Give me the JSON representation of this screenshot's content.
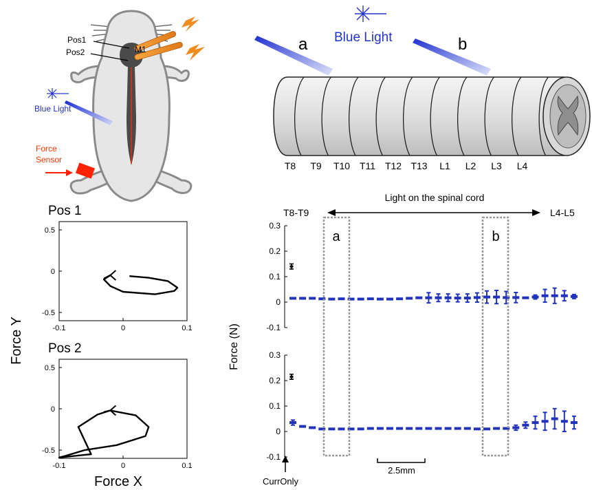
{
  "mouse_panel": {
    "pos1_label": "Pos1",
    "pos2_label": "Pos2",
    "m1_label": "M1",
    "blue_light_label": "Blue Light",
    "force_sensor_line1": "Force",
    "force_sensor_line2": "Sensor",
    "colors": {
      "body": "#e6e6e6",
      "outline": "#8a8a8a",
      "brain": "#4a4a4a",
      "blue": "#2233cc",
      "red": "#ff2200",
      "orange": "#f08c1e"
    }
  },
  "spinal_panel": {
    "blue_light_label": "Blue Light",
    "position_a": "a",
    "position_b": "b",
    "segments": [
      "T8",
      "T9",
      "T10",
      "T11",
      "T12",
      "T13",
      "L1",
      "L2",
      "L3",
      "L4"
    ]
  },
  "trajectory_panel": {
    "shared_ylabel": "Force Y",
    "shared_xlabel": "Force X",
    "plots": [
      {
        "title": "Pos 1",
        "xticks": [
          "-0.1",
          "0",
          "0.1"
        ],
        "yticks": [
          "0.5",
          "0",
          "-0.5"
        ]
      },
      {
        "title": "Pos 2",
        "xticks": [
          "-0.1",
          "0",
          "0.1"
        ],
        "yticks": [
          "0.5",
          "0",
          "-0.5"
        ]
      }
    ]
  },
  "force_panel": {
    "arrow_label": "Light on the spinal cord",
    "left_end": "T8-T9",
    "right_end": "L4-L5",
    "ylabel": "Force  (N)",
    "yticks": [
      "0.3",
      "0.2",
      "0.1",
      "0",
      "-0.1"
    ],
    "box_a": "a",
    "box_b": "b",
    "scale_label": "2.5mm",
    "curronly_label": "CurrOnly"
  },
  "chart_data": [
    {
      "type": "scatter",
      "title": "Pos 1",
      "xlabel": "Force X",
      "ylabel": "Force Y",
      "xlim": [
        -0.1,
        0.1
      ],
      "ylim": [
        -0.6,
        0.6
      ],
      "series": [
        {
          "x": [
            0.01,
            0.04,
            0.07,
            0.085,
            0.08,
            0.05,
            0.0,
            -0.02,
            -0.03,
            -0.02,
            -0.03
          ],
          "y": [
            -0.06,
            -0.08,
            -0.12,
            -0.2,
            -0.24,
            -0.28,
            -0.25,
            -0.18,
            -0.1,
            -0.05,
            -0.09
          ]
        }
      ]
    },
    {
      "type": "scatter",
      "title": "Pos 2",
      "xlabel": "Force X",
      "ylabel": "Force Y",
      "xlim": [
        -0.1,
        0.1
      ],
      "ylim": [
        -0.6,
        0.6
      ],
      "series": [
        {
          "x": [
            -0.02,
            0.02,
            0.04,
            0.035,
            -0.01,
            -0.06,
            -0.09,
            -0.1,
            -0.05,
            -0.07,
            -0.04,
            -0.02,
            -0.03
          ],
          "y": [
            -0.02,
            -0.08,
            -0.22,
            -0.33,
            -0.44,
            -0.5,
            -0.57,
            -0.59,
            -0.55,
            -0.22,
            -0.07,
            -0.02,
            -0.04
          ]
        }
      ]
    },
    {
      "type": "scatter",
      "title": "",
      "xlabel": "",
      "ylabel": "Force  (N)",
      "ylim": [
        -0.1,
        0.3
      ],
      "curronly": {
        "value": 0.14,
        "err": 0.01
      },
      "values": [
        0.015,
        0.015,
        0.015,
        0.013,
        0.012,
        0.013,
        0.012,
        0.012,
        0.013,
        0.012,
        0.012,
        0.013,
        0.015,
        0.017,
        0.017,
        0.017,
        0.017,
        0.016,
        0.016,
        0.018,
        0.02,
        0.02,
        0.018,
        0.018,
        0.017,
        0.02,
        0.025,
        0.025,
        0.025,
        0.022
      ],
      "errors": [
        0.004,
        0.003,
        0.003,
        0.002,
        0.002,
        0.002,
        0.002,
        0.002,
        0.002,
        0.002,
        0.002,
        0.002,
        0.003,
        0.004,
        0.02,
        0.015,
        0.015,
        0.015,
        0.016,
        0.018,
        0.024,
        0.026,
        0.024,
        0.02,
        0.006,
        0.008,
        0.025,
        0.03,
        0.02,
        0.008
      ]
    },
    {
      "type": "scatter",
      "title": "",
      "xlabel": "",
      "ylabel": "Force  (N)",
      "ylim": [
        -0.1,
        0.3
      ],
      "curronly": {
        "value": 0.215,
        "err": 0.01
      },
      "values": [
        0.035,
        0.02,
        0.015,
        0.01,
        0.01,
        0.01,
        0.01,
        0.01,
        0.012,
        0.012,
        0.012,
        0.012,
        0.012,
        0.012,
        0.012,
        0.012,
        0.012,
        0.012,
        0.012,
        0.01,
        0.01,
        0.012,
        0.012,
        0.015,
        0.025,
        0.035,
        0.04,
        0.05,
        0.04,
        0.035
      ],
      "errors": [
        0.01,
        0.005,
        0.003,
        0.002,
        0.002,
        0.002,
        0.002,
        0.002,
        0.002,
        0.002,
        0.002,
        0.002,
        0.002,
        0.002,
        0.002,
        0.002,
        0.002,
        0.002,
        0.002,
        0.002,
        0.002,
        0.002,
        0.003,
        0.01,
        0.012,
        0.025,
        0.035,
        0.04,
        0.04,
        0.025
      ]
    }
  ]
}
